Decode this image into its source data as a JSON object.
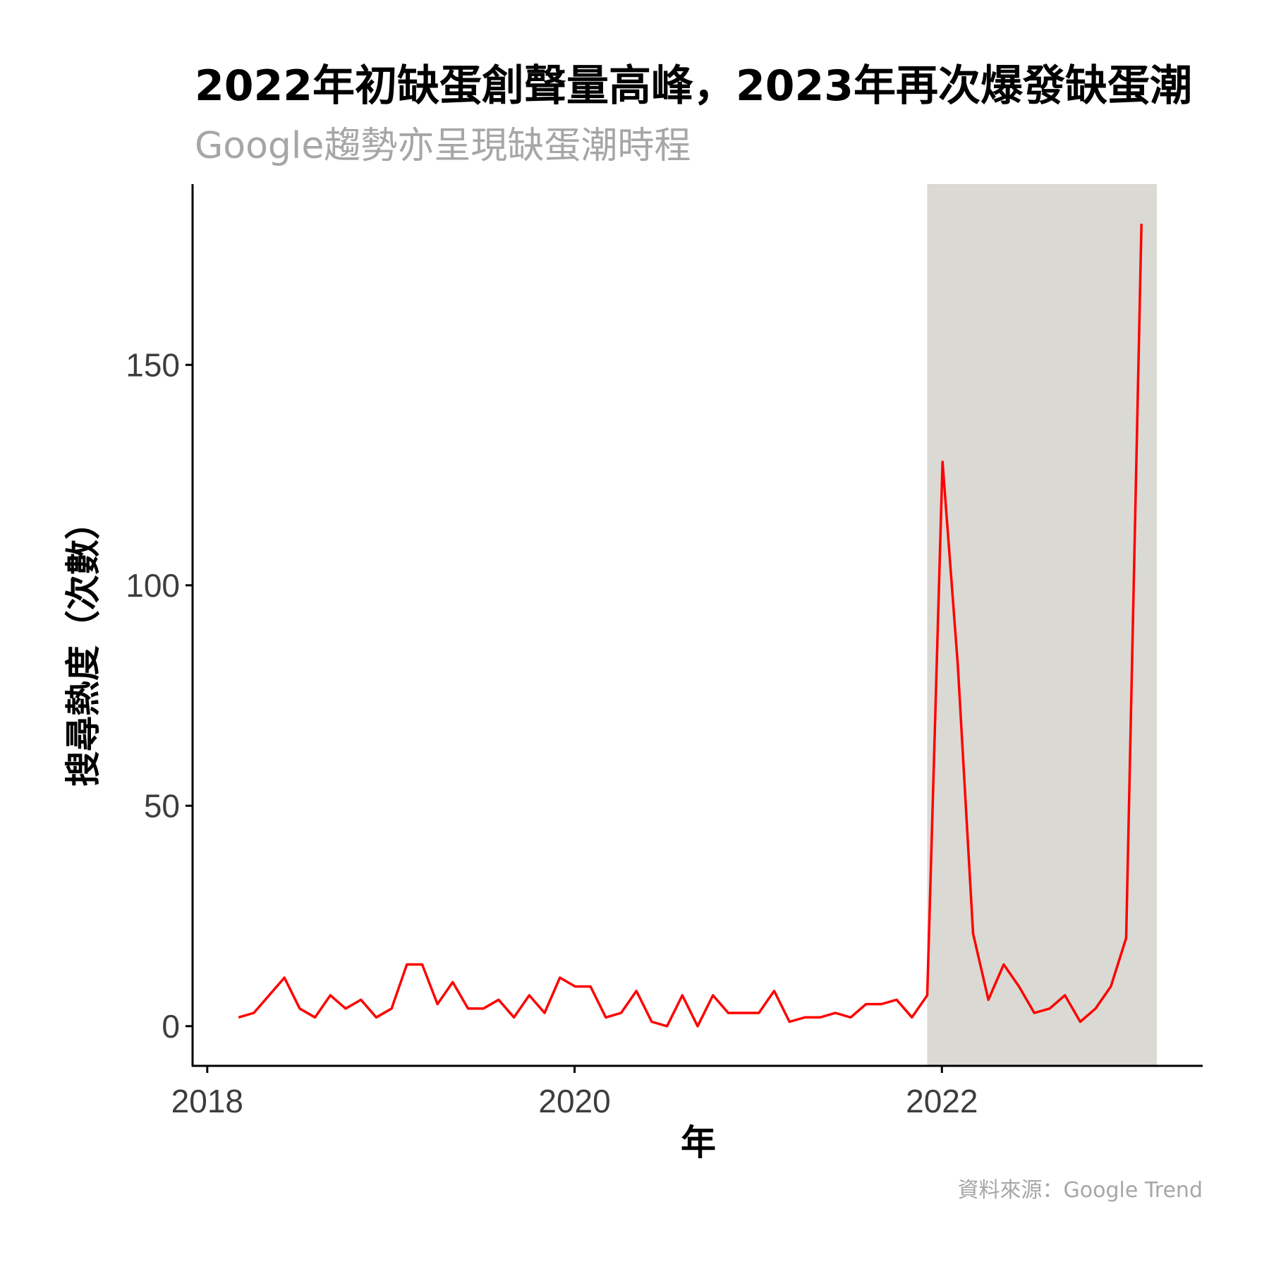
{
  "title": "2022年初缺蛋創聲量高峰，2023年再次爆發缺蛋潮",
  "subtitle": "Google趨勢亦呈現缺蛋潮時程",
  "caption": "資料來源：Google Trend",
  "colors": {
    "line": "#ff0000",
    "highlight": "#dad9d3",
    "axis": "#000000",
    "tick_text": "#3d3d3d",
    "subtitle": "#a6a6a6"
  },
  "chart_data": {
    "type": "line",
    "title": "2022年初缺蛋創聲量高峰，2023年再次爆發缺蛋潮",
    "subtitle": "Google趨勢亦呈現缺蛋潮時程",
    "xlabel": "年",
    "ylabel": "搜尋熱度（次數）",
    "x_ticks": [
      2018,
      2020,
      2022
    ],
    "y_ticks": [
      0,
      50,
      100,
      150
    ],
    "xlim": [
      2017.92,
      2023.42
    ],
    "ylim": [
      -9,
      191
    ],
    "grid": false,
    "highlight_range": {
      "x_start": 2021.92,
      "x_end": 2023.17
    },
    "series": [
      {
        "x_start": 2018.17,
        "x_step_months": 1,
        "values": [
          2,
          3,
          7,
          11,
          4,
          2,
          7,
          4,
          6,
          2,
          4,
          14,
          14,
          5,
          10,
          4,
          4,
          6,
          2,
          7,
          3,
          11,
          9,
          9,
          2,
          3,
          8,
          1,
          0,
          7,
          0,
          7,
          3,
          3,
          3,
          8,
          1,
          2,
          2,
          3,
          2,
          5,
          5,
          6,
          2,
          7,
          128,
          82,
          21,
          6,
          14,
          9,
          3,
          4,
          7,
          1,
          4,
          9,
          20,
          182
        ]
      }
    ]
  }
}
